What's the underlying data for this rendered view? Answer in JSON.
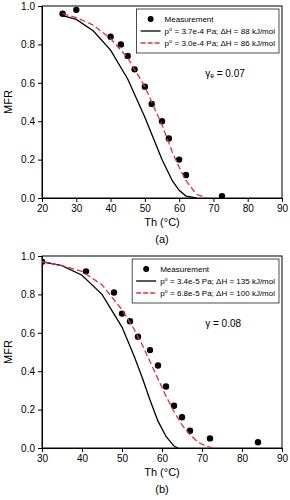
{
  "chart_data": [
    {
      "type": "line",
      "caption": "(a)",
      "x_label": "Th (°C)",
      "y_label": "MFR",
      "annotation": "γₑ = 0.07",
      "xlim": [
        20,
        90
      ],
      "xticks": [
        20,
        30,
        40,
        50,
        60,
        70,
        80,
        90
      ],
      "ylim": [
        0,
        1
      ],
      "yticks": [
        {
          "value": 0,
          "label": "0.0"
        },
        {
          "value": 0.2,
          "label": "0.2"
        },
        {
          "value": 0.4,
          "label": "0.4"
        },
        {
          "value": 0.6,
          "label": "0.6"
        },
        {
          "value": 0.8,
          "label": "0.8"
        },
        {
          "value": 1,
          "label": "1.0"
        }
      ],
      "legend": "upper right",
      "series": [
        {
          "name": "Measurement",
          "type": "scatter",
          "marker": "circle",
          "color": "#000000",
          "x": [
            26,
            30,
            40,
            43,
            45,
            47,
            50,
            52,
            55,
            57,
            60,
            62,
            72.5
          ],
          "values": [
            0.96,
            0.98,
            0.84,
            0.8,
            0.74,
            0.67,
            0.58,
            0.49,
            0.4,
            0.31,
            0.2,
            0.12,
            0.01
          ]
        },
        {
          "name": "p⁰ = 3.7e-4 Pa; ΔH = 88 kJ/mol",
          "type": "line",
          "line_style": "solid",
          "color": "#000000",
          "x": [
            26,
            30,
            35,
            40,
            45,
            50,
            55,
            58,
            60,
            62,
            65
          ],
          "values": [
            0.95,
            0.93,
            0.87,
            0.77,
            0.62,
            0.42,
            0.2,
            0.09,
            0.04,
            0.01,
            0
          ]
        },
        {
          "name": "p⁰ = 3.0e-4 Pa; ΔH = 86 kJ/mol",
          "type": "line",
          "line_style": "dashed",
          "color": "#e0303a",
          "x": [
            26,
            30,
            35,
            40,
            45,
            50,
            55,
            58,
            60,
            62,
            65,
            68
          ],
          "values": [
            0.96,
            0.94,
            0.9,
            0.83,
            0.73,
            0.58,
            0.38,
            0.24,
            0.16,
            0.09,
            0.02,
            0
          ]
        }
      ]
    },
    {
      "type": "line",
      "caption": "(b)",
      "x_label": "Th (°C)",
      "y_label": "MFR",
      "annotation": "γ = 0.08",
      "xlim": [
        30,
        90
      ],
      "xticks": [
        30,
        40,
        50,
        60,
        70,
        80,
        90
      ],
      "ylim": [
        0,
        1
      ],
      "yticks": [
        {
          "value": 0,
          "label": "0.0"
        },
        {
          "value": 0.2,
          "label": "0.2"
        },
        {
          "value": 0.4,
          "label": "0.4"
        },
        {
          "value": 0.6,
          "label": "0.6"
        },
        {
          "value": 0.8,
          "label": "0.8"
        },
        {
          "value": 1,
          "label": "1.0"
        }
      ],
      "legend": "upper right",
      "series": [
        {
          "name": "Measurement",
          "type": "scatter",
          "marker": "circle",
          "color": "#000000",
          "x": [
            30,
            41,
            48,
            50,
            52,
            54,
            57,
            59,
            61,
            63,
            65,
            67,
            72,
            84
          ],
          "values": [
            0.97,
            0.92,
            0.81,
            0.7,
            0.66,
            0.58,
            0.51,
            0.43,
            0.32,
            0.22,
            0.16,
            0.09,
            0.05,
            0.03
          ]
        },
        {
          "name": "p⁰ = 3.4e-5 Pa; ΔH = 135 kJ/mol",
          "type": "line",
          "line_style": "solid",
          "color": "#000000",
          "x": [
            30,
            35,
            40,
            45,
            50,
            53,
            55,
            57,
            59,
            61,
            63,
            64
          ],
          "values": [
            0.97,
            0.95,
            0.9,
            0.8,
            0.63,
            0.48,
            0.37,
            0.25,
            0.14,
            0.06,
            0.01,
            0
          ]
        },
        {
          "name": "p⁰ = 6.8e-5 Pa; ΔH = 100 kJ/mol",
          "type": "line",
          "line_style": "dashed",
          "color": "#e0303a",
          "x": [
            30,
            35,
            40,
            45,
            50,
            53,
            55,
            57,
            59,
            61,
            63,
            65,
            67,
            69,
            71,
            73
          ],
          "values": [
            0.97,
            0.95,
            0.92,
            0.85,
            0.72,
            0.62,
            0.54,
            0.45,
            0.36,
            0.27,
            0.19,
            0.12,
            0.07,
            0.03,
            0.01,
            0
          ]
        }
      ]
    }
  ]
}
